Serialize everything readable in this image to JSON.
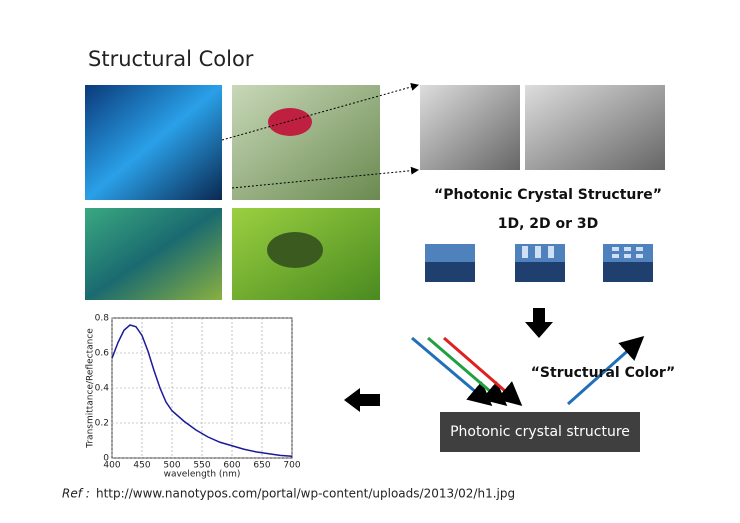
{
  "header": {
    "title": "Structural Color"
  },
  "labels": {
    "photonic": "“Photonic Crystal Structure”",
    "dims": "1D, 2D or 3D",
    "structural": "“Structural Color”",
    "box": "Photonic crystal structure"
  },
  "reference": {
    "prefix": "Ref :",
    "url": "http://www.nanotypos.com/portal/wp-content/uploads/2013/02/h1.jpg"
  },
  "chart_data": {
    "type": "line",
    "x_label": "wavelength (nm)",
    "y_label": "Transmittance/Reflectance",
    "x": [
      400,
      410,
      420,
      430,
      440,
      450,
      460,
      470,
      480,
      490,
      500,
      520,
      540,
      560,
      580,
      600,
      620,
      640,
      660,
      680,
      700
    ],
    "values": [
      0.57,
      0.66,
      0.73,
      0.76,
      0.75,
      0.7,
      0.61,
      0.5,
      0.4,
      0.32,
      0.27,
      0.21,
      0.16,
      0.12,
      0.09,
      0.07,
      0.05,
      0.035,
      0.025,
      0.015,
      0.01
    ],
    "color": "#1a1a9c",
    "xlim": [
      400,
      700
    ],
    "ylim": [
      0,
      0.8
    ],
    "xticks": [
      400,
      450,
      500,
      550,
      600,
      650,
      700
    ],
    "yticks": [
      0,
      0.2,
      0.4,
      0.6,
      0.8
    ],
    "grid": true
  }
}
